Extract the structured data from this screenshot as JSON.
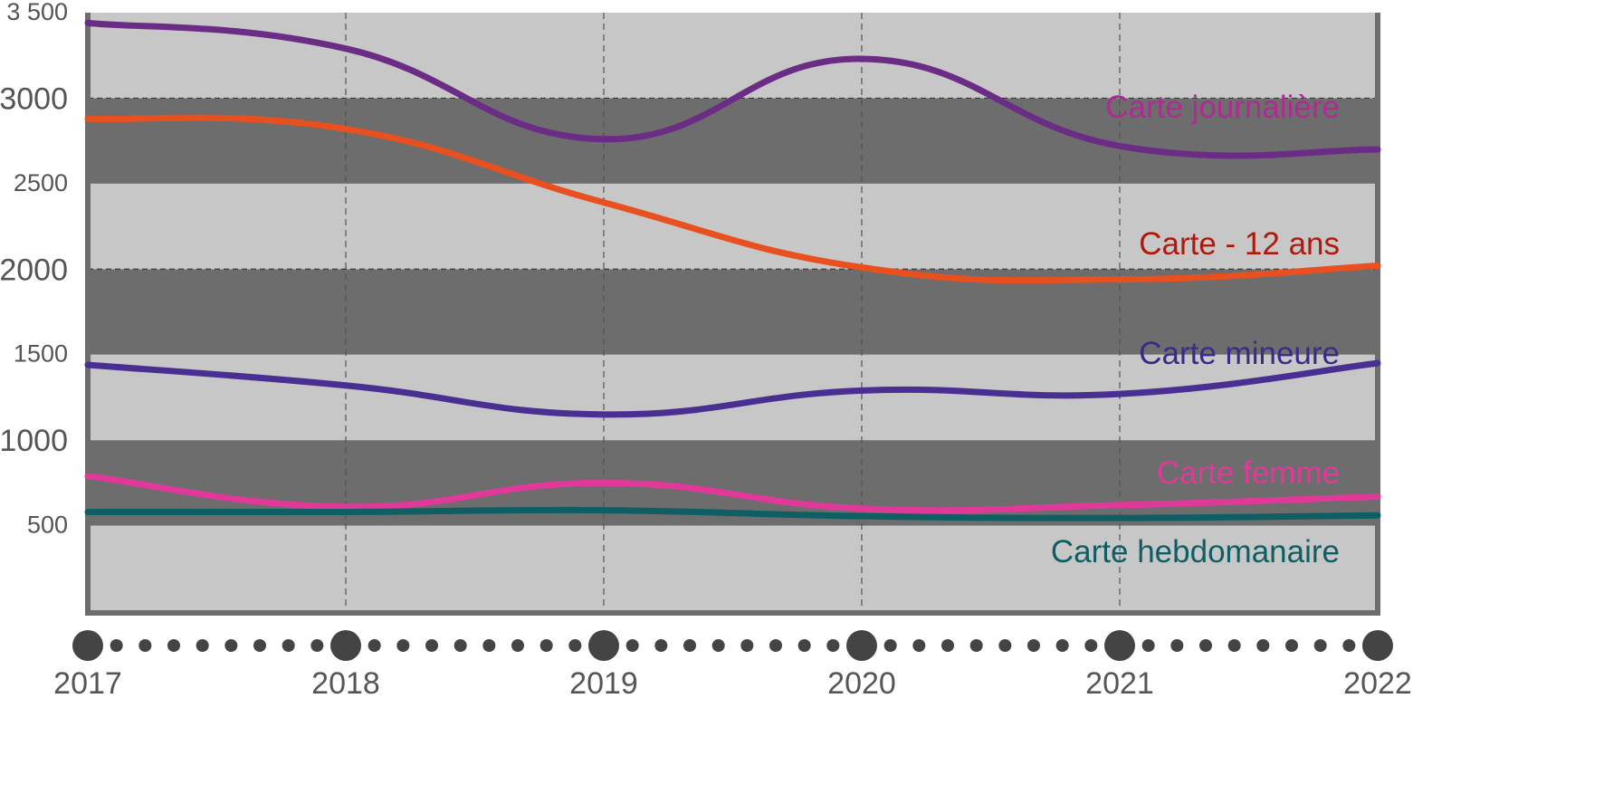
{
  "chart_data": {
    "type": "line",
    "title": "",
    "xlabel": "",
    "ylabel": "",
    "x": [
      2017,
      2018,
      2019,
      2020,
      2021,
      2022
    ],
    "x_tick_labels": [
      "2017",
      "2018",
      "2019",
      "2020",
      "2021",
      "2022"
    ],
    "y_tick_labels": [
      "3 500",
      "3000",
      "2500",
      "2000",
      "1500",
      "1000",
      "500"
    ],
    "y_tick_values": [
      3500,
      3000,
      2500,
      2000,
      1500,
      1000,
      500
    ],
    "ylim": [
      0,
      3500
    ],
    "xlim": [
      2017,
      2022
    ],
    "grid": true,
    "band_colors": [
      "#c7c7c7",
      "#6d6d6d"
    ],
    "series": [
      {
        "name": "Carte journalière",
        "color": "#6b2c86",
        "label_color": "#b02a94",
        "values": [
          3440,
          3290,
          2760,
          3230,
          2720,
          2700
        ]
      },
      {
        "name": "Carte - 12 ans",
        "color": "#e8501f",
        "label_color": "#b0180c",
        "values": [
          2880,
          2820,
          2390,
          2010,
          1940,
          2020
        ]
      },
      {
        "name": "Carte mineure",
        "color": "#4a2f92",
        "label_color": "#3a2a8c",
        "values": [
          1440,
          1320,
          1150,
          1290,
          1270,
          1450
        ]
      },
      {
        "name": "Carte femme",
        "color": "#e0399a",
        "label_color": "#e0399a",
        "values": [
          790,
          610,
          750,
          600,
          620,
          670
        ]
      },
      {
        "name": "Carte hebdomanaire",
        "color": "#0f5e63",
        "label_color": "#0f5e63",
        "values": [
          580,
          580,
          590,
          555,
          545,
          560
        ]
      }
    ]
  }
}
